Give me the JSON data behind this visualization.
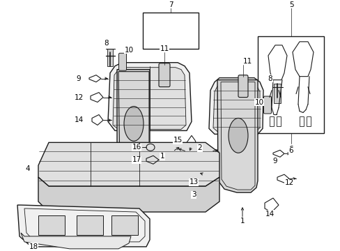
{
  "background_color": "#ffffff",
  "line_color": "#1a1a1a",
  "fig_width": 4.89,
  "fig_height": 3.6,
  "dpi": 100,
  "label_fontsize": 7.5,
  "lw_main": 1.0,
  "lw_thin": 0.5
}
